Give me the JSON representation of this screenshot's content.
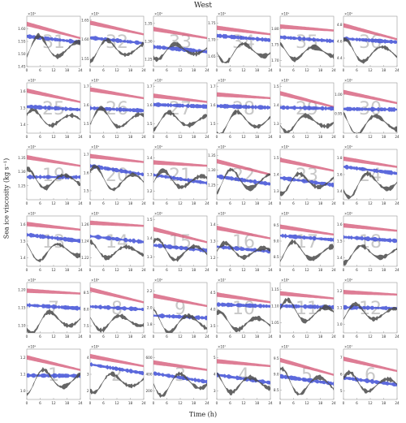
{
  "figure": {
    "title": "West",
    "xlabel": "Time (h)",
    "ylabel": "Sea ice viscosity (kg s⁻¹)",
    "x_ticks": [
      "0",
      "6",
      "12",
      "18",
      "24"
    ]
  },
  "colors": {
    "red_series": "#d65c7a",
    "blue_series": "#3f4fd6",
    "gray_series": "#4a4a4a",
    "axis": "#999999",
    "panel_number": "#c8c8c8"
  },
  "chart_data": [
    {
      "panel": "31",
      "exponent": "×10⁹",
      "y_ticks": [
        "1.60",
        "1.55",
        "1.50",
        "1.45"
      ],
      "ylim": [
        1.45,
        1.65
      ]
    },
    {
      "panel": "32",
      "exponent": "×10⁹",
      "y_ticks": [
        "1.65",
        "1.60",
        "1.55"
      ],
      "ylim": [
        1.53,
        1.66
      ]
    },
    {
      "panel": "33",
      "exponent": "×10⁹",
      "y_ticks": [
        "1.35",
        "1.30",
        "1.25"
      ],
      "ylim": [
        1.23,
        1.37
      ]
    },
    {
      "panel": "34",
      "exponent": "×10⁹",
      "y_ticks": [
        "1.75",
        "1.70",
        "1.65"
      ],
      "ylim": [
        1.62,
        1.77
      ]
    },
    {
      "panel": "35",
      "exponent": "×10⁹",
      "y_ticks": [
        "1.80",
        "1.75",
        "1.70"
      ],
      "ylim": [
        1.68,
        1.84
      ]
    },
    {
      "panel": "36",
      "exponent": "×10⁹",
      "y_ticks": [
        "4.8",
        "4.6",
        "4.4"
      ],
      "ylim": [
        4.3,
        4.9
      ]
    },
    {
      "panel": "25",
      "exponent": "×10⁹",
      "y_ticks": [
        "1.6",
        "1.5",
        "1.4"
      ],
      "ylim": [
        1.35,
        1.65
      ]
    },
    {
      "panel": "26",
      "exponent": "×10⁹",
      "y_ticks": [
        "1.7",
        "1.6",
        "1.5"
      ],
      "ylim": [
        1.45,
        1.72
      ]
    },
    {
      "panel": "27",
      "exponent": "×10⁹",
      "y_ticks": [
        "1.7",
        "1.6",
        "1.5"
      ],
      "ylim": [
        1.45,
        1.72
      ]
    },
    {
      "panel": "28",
      "exponent": "×10⁹",
      "y_ticks": [
        "1.7",
        "1.6",
        "1.5"
      ],
      "ylim": [
        1.45,
        1.72
      ]
    },
    {
      "panel": "29",
      "exponent": "×10⁹",
      "y_ticks": [
        "1.5",
        "1.4",
        "1.3"
      ],
      "ylim": [
        1.25,
        1.52
      ]
    },
    {
      "panel": "30",
      "exponent": "×10⁹",
      "y_ticks": [
        "1.00",
        "0.95"
      ],
      "ylim": [
        0.9,
        1.03
      ]
    },
    {
      "panel": "19",
      "exponent": "×10⁹",
      "y_ticks": [
        "1.35",
        "1.30",
        "1.25"
      ],
      "ylim": [
        1.2,
        1.38
      ]
    },
    {
      "panel": "20",
      "exponent": "×10⁹",
      "y_ticks": [
        "1.7",
        "1.6",
        "1.5"
      ],
      "ylim": [
        1.45,
        1.73
      ]
    },
    {
      "panel": "21",
      "exponent": "×10⁹",
      "y_ticks": [
        "1.4",
        "1.3",
        "1.2"
      ],
      "ylim": [
        1.15,
        1.45
      ]
    },
    {
      "panel": "22",
      "exponent": "×10⁹",
      "y_ticks": [
        "1.35",
        "1.30",
        "1.25"
      ],
      "ylim": [
        1.2,
        1.37
      ]
    },
    {
      "panel": "23",
      "exponent": "×10⁹",
      "y_ticks": [
        "1.5",
        "1.4",
        "1.3"
      ],
      "ylim": [
        1.25,
        1.55
      ]
    },
    {
      "panel": "24",
      "exponent": "×10⁹",
      "y_ticks": [
        "1.8",
        "1.6",
        "1.4"
      ],
      "ylim": [
        1.3,
        1.9
      ]
    },
    {
      "panel": "13",
      "exponent": "×10⁹",
      "y_ticks": [
        "1.6",
        "1.5",
        "1.4"
      ],
      "ylim": [
        1.35,
        1.65
      ]
    },
    {
      "panel": "14",
      "exponent": "×10⁹",
      "y_ticks": [
        "1.26",
        "1.24",
        "1.22"
      ],
      "ylim": [
        1.21,
        1.27
      ]
    },
    {
      "panel": "15",
      "exponent": "×10⁹",
      "y_ticks": [
        "1.5",
        "1.4",
        "1.3"
      ],
      "ylim": [
        1.25,
        1.52
      ]
    },
    {
      "panel": "16",
      "exponent": "×10⁹",
      "y_ticks": [
        "1.4",
        "1.3",
        "1.2"
      ],
      "ylim": [
        1.15,
        1.45
      ]
    },
    {
      "panel": "17",
      "exponent": "×10⁸",
      "y_ticks": [
        "9.5",
        "9.0",
        "8.5"
      ],
      "ylim": [
        8.2,
        9.8
      ]
    },
    {
      "panel": "18",
      "exponent": "×10⁹",
      "y_ticks": [
        "1.6",
        "1.5",
        "1.4"
      ],
      "ylim": [
        1.35,
        1.65
      ]
    },
    {
      "panel": "7",
      "exponent": "×10⁸",
      "y_ticks": [
        "1.20",
        "1.15",
        "1.10"
      ],
      "ylim": [
        1.08,
        1.22
      ]
    },
    {
      "panel": "8",
      "exponent": "×10⁸",
      "y_ticks": [
        "8.5",
        "8.0",
        "7.5"
      ],
      "ylim": [
        7.3,
        8.8
      ]
    },
    {
      "panel": "9",
      "exponent": "×10⁸",
      "y_ticks": [
        "2.2",
        "2.0",
        "1.8"
      ],
      "ylim": [
        1.7,
        2.3
      ]
    },
    {
      "panel": "10",
      "exponent": "×10⁷",
      "y_ticks": [
        "4.5",
        "4.0",
        "3.5"
      ],
      "ylim": [
        3.3,
        4.8
      ]
    },
    {
      "panel": "11",
      "exponent": "×10⁸",
      "y_ticks": [
        "1.15",
        "1.10",
        "1.05"
      ],
      "ylim": [
        1.02,
        1.17
      ]
    },
    {
      "panel": "12",
      "exponent": "×10⁸",
      "y_ticks": [
        "1.2",
        "1.1",
        "1.0"
      ],
      "ylim": [
        0.95,
        1.25
      ]
    },
    {
      "panel": "1",
      "exponent": "×10⁸",
      "y_ticks": [
        "1.2",
        "1.1",
        "1.0"
      ],
      "ylim": [
        0.95,
        1.25
      ]
    },
    {
      "panel": "2",
      "exponent": "×10⁸",
      "y_ticks": [
        "4",
        "3",
        "2"
      ],
      "ylim": [
        1.5,
        4.5
      ]
    },
    {
      "panel": "3",
      "exponent": "",
      "y_ticks": [
        "600",
        "400",
        "200"
      ],
      "ylim": [
        100,
        700
      ]
    },
    {
      "panel": "4",
      "exponent": "×10⁷",
      "y_ticks": [
        "5",
        "4",
        "3"
      ],
      "ylim": [
        2.5,
        5.5
      ]
    },
    {
      "panel": "5",
      "exponent": "×10⁷",
      "y_ticks": [
        "9.5",
        "9.0",
        "8.5"
      ],
      "ylim": [
        8.2,
        9.8
      ]
    },
    {
      "panel": "6",
      "exponent": "×10⁷",
      "y_ticks": [
        "7",
        "6",
        "5"
      ],
      "ylim": [
        4.5,
        7.5
      ]
    }
  ]
}
